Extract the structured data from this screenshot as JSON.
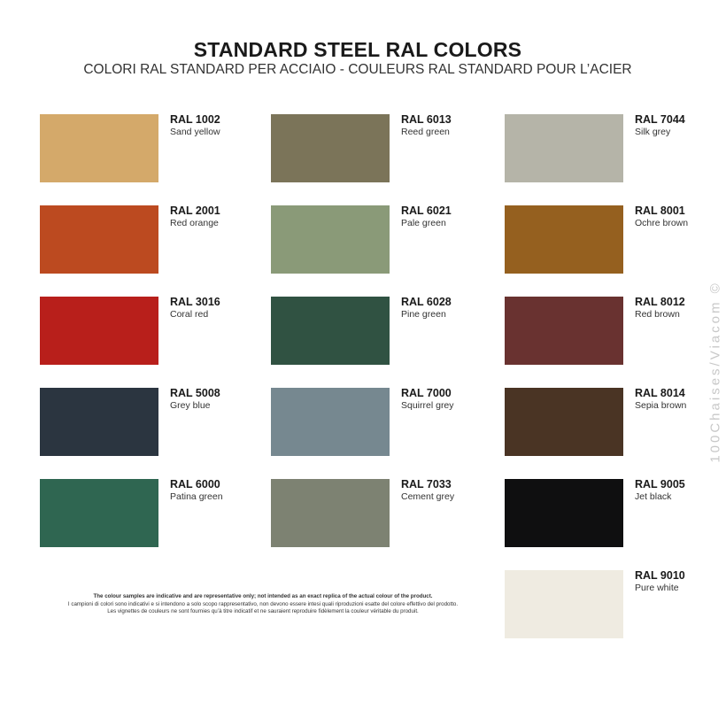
{
  "header": {
    "title": "STANDARD STEEL RAL COLORS",
    "subtitle": "COLORI RAL STANDARD PER ACCIAIO - COULEURS RAL STANDARD POUR L’ACIER"
  },
  "colors": [
    {
      "code": "RAL 1002",
      "name": "Sand yellow",
      "hex": "#d4a96a"
    },
    {
      "code": "RAL 2001",
      "name": "Red orange",
      "hex": "#bc4a20"
    },
    {
      "code": "RAL 3016",
      "name": "Coral red",
      "hex": "#b81f1b"
    },
    {
      "code": "RAL 5008",
      "name": "Grey blue",
      "hex": "#2b3540"
    },
    {
      "code": "RAL 6000",
      "name": "Patina green",
      "hex": "#2f6651"
    },
    {
      "code": "RAL 6013",
      "name": "Reed green",
      "hex": "#7b7459"
    },
    {
      "code": "RAL 6021",
      "name": "Pale green",
      "hex": "#8a9a78"
    },
    {
      "code": "RAL 6028",
      "name": "Pine green",
      "hex": "#305242"
    },
    {
      "code": "RAL 7000",
      "name": "Squirrel grey",
      "hex": "#768890"
    },
    {
      "code": "RAL 7033",
      "name": "Cement grey",
      "hex": "#7d8272"
    },
    {
      "code": "RAL 7044",
      "name": "Silk grey",
      "hex": "#b5b4a8"
    },
    {
      "code": "RAL 8001",
      "name": "Ochre brown",
      "hex": "#95601f"
    },
    {
      "code": "RAL 8012",
      "name": "Red brown",
      "hex": "#693230"
    },
    {
      "code": "RAL 8014",
      "name": "Sepia brown",
      "hex": "#4a3424"
    },
    {
      "code": "RAL 9005",
      "name": "Jet black",
      "hex": "#0f0f10"
    },
    {
      "code": "RAL 9010",
      "name": "Pure white",
      "hex": "#efebe1"
    }
  ],
  "disclaimer": {
    "en": "The colour samples are indicative and are representative only; not intended as an exact replica of the actual colour of the product.",
    "it": "I campioni di colori sono indicativi e si intendono a solo scopo rappresentativo, non devono essere intesi quali riproduzioni esatte del colore effettivo del prodotto.",
    "fr": "Les vignettes de couleurs ne sont fournies qu’à titre indicatif et ne sauraient reproduire fidèlement la couleur véritable du produit."
  },
  "watermark": "100Chaises/Viacom ©"
}
